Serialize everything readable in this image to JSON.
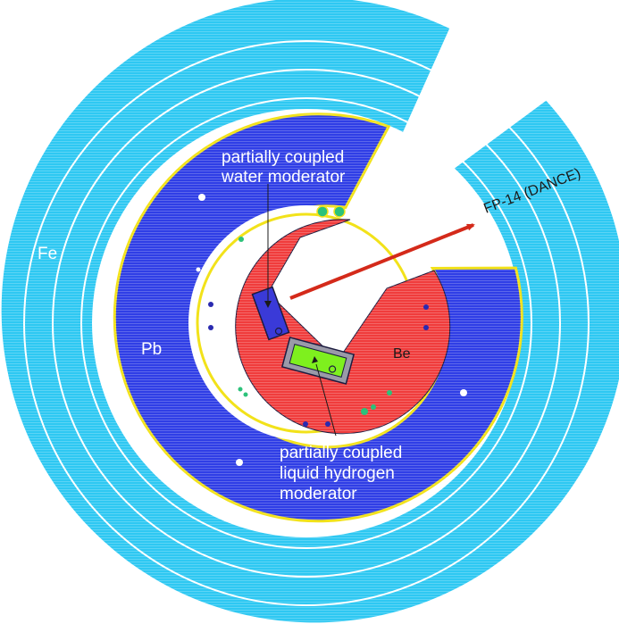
{
  "labels": {
    "fe": "Fe",
    "pb": "Pb",
    "be": "Be",
    "water_line1": "partially coupled",
    "water_line2": "water moderator",
    "hydrogen_line1": "partially coupled",
    "hydrogen_line2": "liquid hydrogen",
    "hydrogen_line3": "moderator",
    "flight_path": "FP-14 (DANCE)"
  },
  "colors": {
    "iron": "#2ec8f2",
    "lead": "#2f3ee6",
    "beryllium": "#f03c3c",
    "gap": "#ffffff",
    "liner": "#f2e21a",
    "outline": "#1c1c40",
    "arrow": "#d42a1a",
    "water_moderator": "#3a3ad8",
    "hydrogen_moderator": "#7ef01e",
    "hydrogen_frame": "#9a9aa8"
  }
}
